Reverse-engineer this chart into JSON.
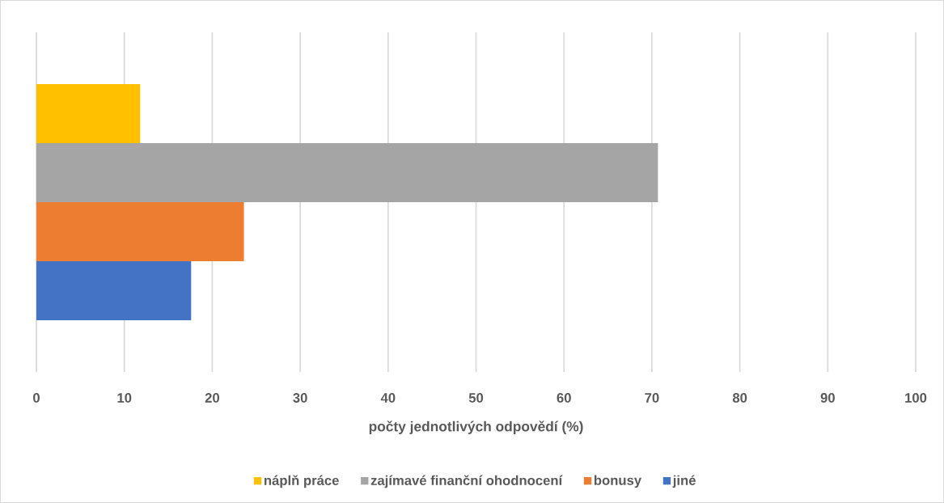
{
  "chart_data": {
    "type": "bar",
    "orientation": "horizontal",
    "categories": [
      null
    ],
    "series": [
      {
        "name": "náplň práce",
        "color": "#ffc000",
        "values": [
          11.8
        ]
      },
      {
        "name": "zajímavé finanční ohodnocení",
        "color": "#a5a5a5",
        "values": [
          70.7
        ]
      },
      {
        "name": "bonusy",
        "color": "#ed7d31",
        "values": [
          23.6
        ]
      },
      {
        "name": "jiné",
        "color": "#4472c4",
        "values": [
          17.6
        ]
      }
    ],
    "xlabel": "počty jednotlivých odpovědí (%)",
    "xlim": [
      0,
      100
    ],
    "xticks": [
      0,
      10,
      20,
      30,
      40,
      50,
      60,
      70,
      80,
      90,
      100
    ],
    "grid": "x",
    "legend": "bottom"
  }
}
